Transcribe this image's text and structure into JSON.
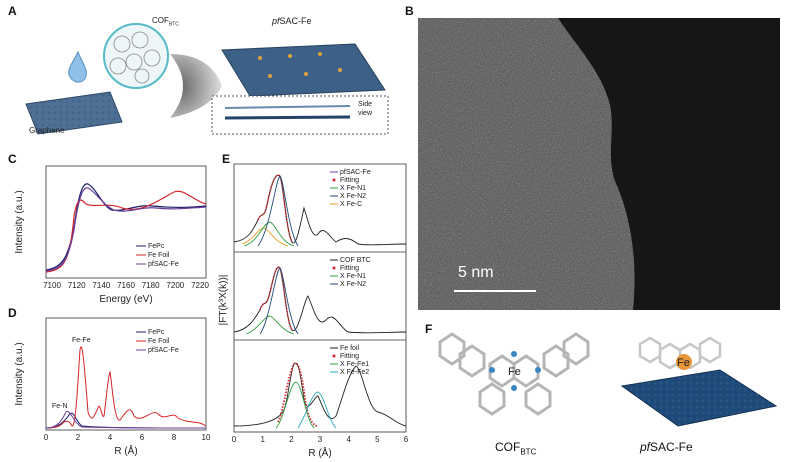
{
  "panels": {
    "a": {
      "label": "A",
      "graphene": "Graphene",
      "cof": "COF",
      "cof_sub": "BTC",
      "product_pre": "pf",
      "product": "SAC-Fe",
      "side_view": "Side\nview"
    },
    "b": {
      "label": "B",
      "scale_bar": "5 nm"
    },
    "c": {
      "label": "C",
      "ylabel": "Intensity (a.u.)",
      "xlabel": "Energy (eV)",
      "ticks": [
        "7100",
        "7120",
        "7140",
        "7160",
        "7180",
        "7200",
        "7220"
      ],
      "legend": [
        "FePc",
        "Fe Foil",
        "pfSAC-Fe"
      ]
    },
    "d": {
      "label": "D",
      "ylabel": "Intensity (a.u.)",
      "xlabel": "R (Å)",
      "ticks": [
        "0",
        "2",
        "4",
        "6",
        "8",
        "10"
      ],
      "legend": [
        "FePc",
        "Fe Foil",
        "pfSAC-Fe"
      ],
      "annot_fefe": "Fe-Fe",
      "annot_fen": "Fe-N"
    },
    "e": {
      "label": "E",
      "ylabel": "|FT(k³X(k))|",
      "xlabel": "R (Å)",
      "ticks": [
        "0",
        "1",
        "2",
        "3",
        "4",
        "5",
        "6"
      ],
      "top_legend": [
        "pfSAC-Fe",
        "Fitting",
        "X Fe-N1",
        "X Fe-N2",
        "X Fe-C"
      ],
      "mid_legend": [
        "COF BTC",
        "Fitting",
        "X Fe-N1",
        "X Fe-N2"
      ],
      "bot_legend": [
        "Fe foil",
        "Fitting",
        "X Fe-Fe1",
        "X Fe-Fe2"
      ]
    },
    "f": {
      "label": "F",
      "left_caption": "COF",
      "left_sub": "BTC",
      "right_pre": "pf",
      "right_caption": "SAC-Fe",
      "fe": "Fe",
      "fe2": "Fe"
    }
  },
  "colors": {
    "fepc": "#1b1b6b",
    "foil": "#d4262a",
    "pfsac": "#6a3d9a",
    "green": "#2e9e3e",
    "teal": "#2aa8b8",
    "orange": "#e8a020",
    "navy": "#1e4a7a"
  }
}
